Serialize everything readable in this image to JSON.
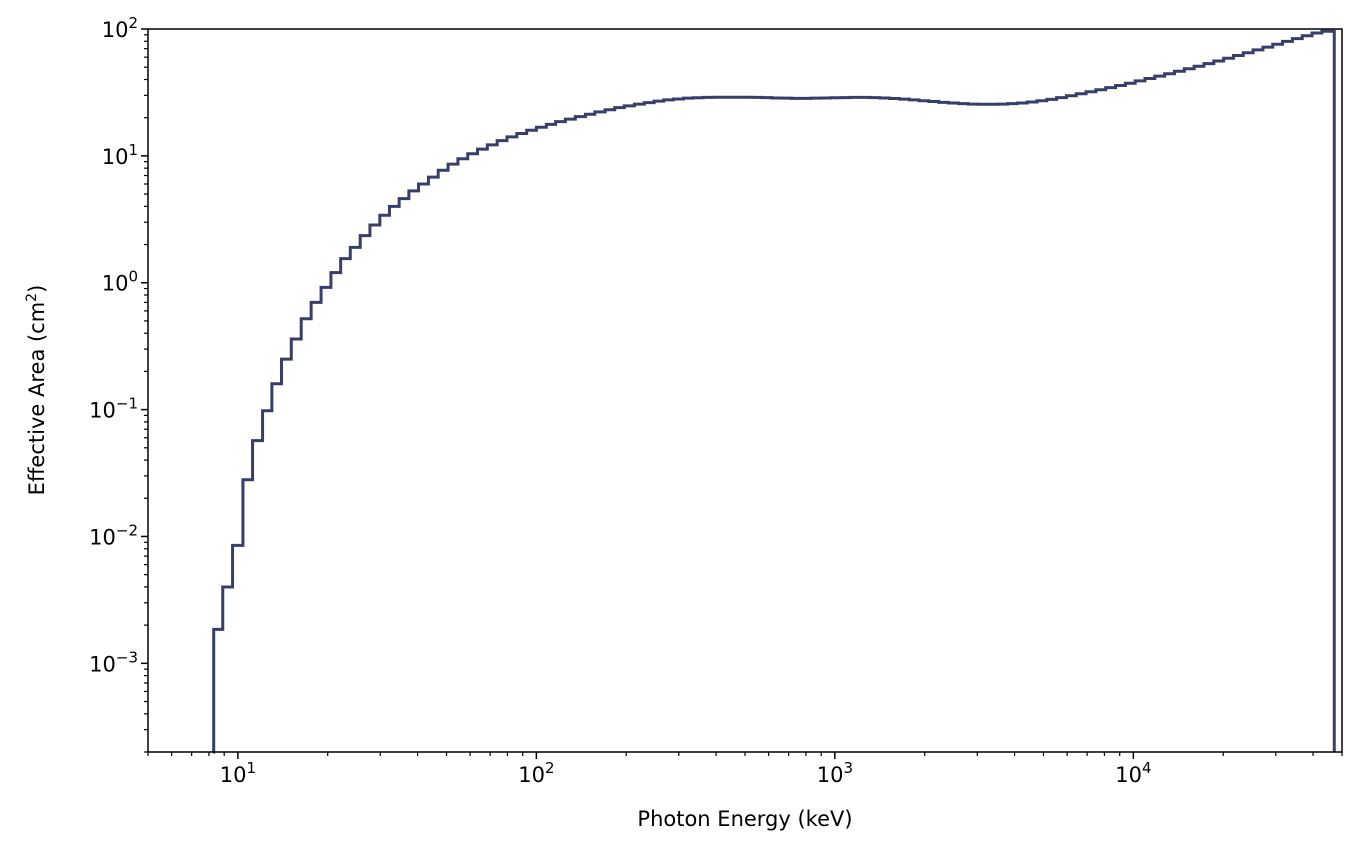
{
  "chart_data": {
    "type": "line",
    "style": "step",
    "title": "",
    "xlabel": "Photon Energy (keV)",
    "ylabel_text": "Effective Area (cm",
    "ylabel_sup": "2",
    "ylabel_close": ")",
    "xscale": "log",
    "yscale": "log",
    "xlim": [
      5,
      50000
    ],
    "ylim": [
      0.0002,
      100
    ],
    "grid": false,
    "line_color": "#363f69",
    "x_ticks": [
      {
        "value": 10,
        "base": "10",
        "exp": "1"
      },
      {
        "value": 100,
        "base": "10",
        "exp": "2"
      },
      {
        "value": 1000,
        "base": "10",
        "exp": "3"
      },
      {
        "value": 10000,
        "base": "10",
        "exp": "4"
      }
    ],
    "y_ticks": [
      {
        "value": 0.001,
        "base": "10",
        "exp": "−3"
      },
      {
        "value": 0.01,
        "base": "10",
        "exp": "−2"
      },
      {
        "value": 0.1,
        "base": "10",
        "exp": "−1"
      },
      {
        "value": 1,
        "base": "10",
        "exp": "0"
      },
      {
        "value": 10,
        "base": "10",
        "exp": "1"
      },
      {
        "value": 100,
        "base": "10",
        "exp": "2"
      }
    ],
    "series": [
      {
        "x": [
          8.3,
          8.9,
          9.6,
          10.4,
          11.2,
          12.1,
          13.0,
          14.0,
          15.1,
          16.3,
          17.6,
          19.0,
          20.5,
          22.1,
          23.8,
          25.7,
          27.7,
          29.9,
          32.2,
          34.7,
          37.4,
          40.3,
          43.5,
          46.9,
          50.6,
          54.6,
          58.9,
          63.5,
          68.5,
          73.9,
          79.7,
          86.0,
          92.8,
          100,
          108,
          116,
          125,
          135,
          146,
          157,
          170,
          183,
          197,
          213,
          230,
          248,
          267,
          288,
          311,
          335,
          362,
          390,
          421,
          454,
          490,
          528,
          570,
          615,
          663,
          715,
          772,
          832,
          898,
          968,
          1044,
          1126,
          1215,
          1311,
          1414,
          1525,
          1645,
          1775,
          1914,
          2065,
          2228,
          2403,
          2592,
          2796,
          3016,
          3254,
          3510,
          3786,
          4084,
          4406,
          4753,
          5127,
          5531,
          5966,
          6436,
          6943,
          7489,
          8079,
          8715,
          9401,
          10141,
          10940,
          11801,
          12730,
          13733,
          14814,
          15981,
          17239,
          18597,
          20061,
          21641,
          23345,
          25183,
          27166,
          29306,
          31613,
          34103,
          36788,
          39685,
          42810,
          46181
        ],
        "y": [
          0.00185,
          0.004,
          0.0085,
          0.028,
          0.057,
          0.098,
          0.16,
          0.25,
          0.36,
          0.52,
          0.7,
          0.92,
          1.2,
          1.55,
          1.9,
          2.35,
          2.85,
          3.4,
          4.0,
          4.6,
          5.3,
          6.0,
          6.8,
          7.7,
          8.6,
          9.5,
          10.4,
          11.3,
          12.2,
          13.2,
          14.1,
          15.0,
          15.9,
          16.8,
          17.7,
          18.6,
          19.5,
          20.4,
          21.3,
          22.2,
          23.1,
          24.0,
          24.8,
          25.6,
          26.3,
          27.0,
          27.6,
          28.1,
          28.5,
          28.7,
          28.9,
          29.0,
          29.0,
          29.0,
          29.0,
          28.9,
          28.8,
          28.6,
          28.5,
          28.4,
          28.4,
          28.5,
          28.6,
          28.7,
          28.8,
          28.9,
          28.9,
          28.8,
          28.6,
          28.3,
          28.0,
          27.6,
          27.2,
          26.8,
          26.4,
          26.1,
          25.8,
          25.6,
          25.5,
          25.5,
          25.6,
          25.8,
          26.1,
          26.6,
          27.2,
          27.9,
          28.8,
          29.8,
          30.9,
          32.0,
          33.2,
          34.5,
          35.9,
          37.4,
          39.0,
          40.7,
          42.5,
          44.4,
          46.4,
          48.6,
          50.9,
          53.4,
          56.0,
          58.8,
          61.8,
          65.0,
          68.4,
          72.0,
          75.8,
          79.8,
          84.0,
          88.5,
          93.0,
          96.0,
          96.0
        ]
      }
    ]
  }
}
